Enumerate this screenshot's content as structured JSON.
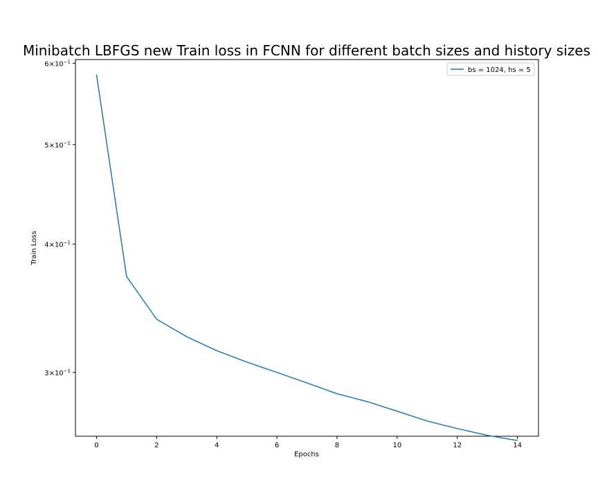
{
  "chart_data": {
    "type": "line",
    "title": "Minibatch LBFGS new Train loss in FCNN for different batch sizes and history sizes",
    "xlabel": "Epochs",
    "ylabel": "Train Loss",
    "xlim": [
      -0.7,
      14.7
    ],
    "ylim": [
      0.26,
      0.605
    ],
    "yscale": "log",
    "grid": false,
    "legend_position": "top-right",
    "xticks": [
      0,
      2,
      4,
      6,
      8,
      10,
      12,
      14
    ],
    "xtick_labels": [
      "0",
      "2",
      "4",
      "6",
      "8",
      "10",
      "12",
      "14"
    ],
    "yticks": [
      {
        "value": 0.6,
        "mantissa": "6",
        "base": "10",
        "exp": "−1"
      },
      {
        "value": 0.5,
        "mantissa": "5",
        "base": "10",
        "exp": "−1"
      },
      {
        "value": 0.4,
        "mantissa": "4",
        "base": "10",
        "exp": "−1"
      },
      {
        "value": 0.3,
        "mantissa": "3",
        "base": "10",
        "exp": "−1"
      }
    ],
    "series": [
      {
        "name": "bs = 1024, hs = 5",
        "color": "#1f77b4",
        "x": [
          0,
          1,
          2,
          3,
          4,
          5,
          6,
          7,
          8,
          9,
          10,
          11,
          12,
          13,
          14
        ],
        "y": [
          0.585,
          0.372,
          0.338,
          0.325,
          0.315,
          0.307,
          0.3,
          0.293,
          0.286,
          0.281,
          0.275,
          0.269,
          0.2645,
          0.2605,
          0.2575
        ]
      }
    ]
  }
}
